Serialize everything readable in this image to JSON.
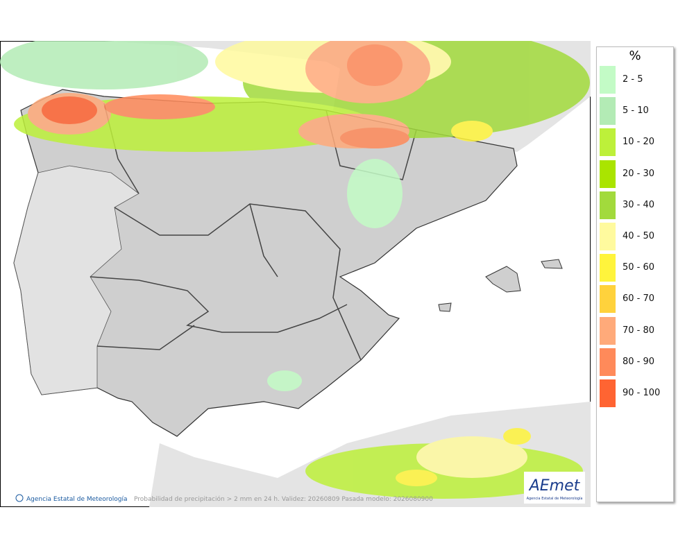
{
  "legend": {
    "title": "%",
    "items": [
      {
        "label": "2 - 5",
        "color": "#c3fbc6"
      },
      {
        "label": "5 - 10",
        "color": "#b3ebb5"
      },
      {
        "label": "10 - 20",
        "color": "#bdf03a"
      },
      {
        "label": "20 - 30",
        "color": "#aae400"
      },
      {
        "label": "30 - 40",
        "color": "#a2da3c"
      },
      {
        "label": "40 - 50",
        "color": "#fffa9e"
      },
      {
        "label": "50 - 60",
        "color": "#fff43c"
      },
      {
        "label": "60 - 70",
        "color": "#ffd23c"
      },
      {
        "label": "70 - 80",
        "color": "#ffaa7a"
      },
      {
        "label": "80 - 90",
        "color": "#ff8a5a"
      },
      {
        "label": "90 - 100",
        "color": "#ff6432"
      }
    ]
  },
  "footer": {
    "credit": "Agencia Estatal de Meteorología",
    "caption": "Probabilidad de precipitación > 2 mm en 24 h. Validez: 20260809 Pasada modelo: 2026080900"
  },
  "logo": {
    "name": "AEmet",
    "subtitle": "Agencia Estatal de Meteorología"
  }
}
